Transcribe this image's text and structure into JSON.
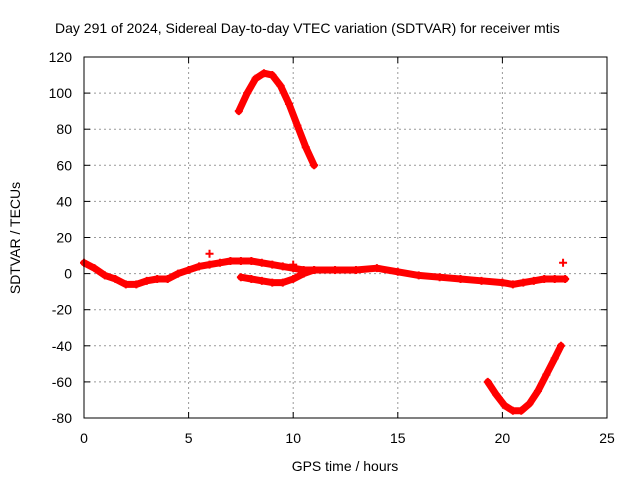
{
  "chart_data": {
    "type": "scatter",
    "title": "Day 291 of 2024, Sidereal Day-to-day VTEC variation (SDTVAR) for receiver mtis",
    "xlabel": "GPS time / hours",
    "ylabel": "SDTVAR / TECUs",
    "xlim": [
      0,
      25
    ],
    "ylim": [
      -80,
      120
    ],
    "xticks": [
      0,
      5,
      10,
      15,
      20,
      25
    ],
    "yticks": [
      -80,
      -60,
      -40,
      -20,
      0,
      20,
      40,
      60,
      80,
      100,
      120
    ],
    "grid": true,
    "series_color": "#ff0000",
    "series": [
      {
        "name": "main-band",
        "x": [
          0,
          0.5,
          1,
          1.5,
          2,
          2.5,
          3,
          3.5,
          4,
          4.5,
          5,
          5.5,
          6,
          6.5,
          7,
          7.5,
          8,
          8.5,
          9,
          9.5,
          10,
          10.5,
          11,
          12,
          13,
          14,
          15,
          16,
          17,
          18,
          19,
          20,
          20.5,
          21,
          21.5,
          22,
          22.5,
          23
        ],
        "y": [
          6,
          3,
          -1,
          -3,
          -6,
          -6,
          -4,
          -3,
          -3,
          0,
          2,
          4,
          5,
          6,
          7,
          7,
          7,
          6,
          5,
          4,
          3,
          2,
          2,
          2,
          2,
          3,
          1,
          -1,
          -2,
          -3,
          -4,
          -5,
          -6,
          -5,
          -4,
          -3,
          -3,
          -3
        ]
      },
      {
        "name": "lower-branch",
        "x": [
          7.5,
          8,
          8.5,
          9,
          9.5,
          10,
          10.5,
          11
        ],
        "y": [
          -2,
          -3,
          -4,
          -5,
          -5,
          -3,
          0,
          2
        ]
      },
      {
        "name": "upper-arc",
        "x": [
          7.4,
          7.8,
          8.2,
          8.6,
          9.0,
          9.4,
          9.8,
          10.2,
          10.6,
          11.0
        ],
        "y": [
          90,
          100,
          108,
          111,
          110,
          104,
          94,
          82,
          70,
          60
        ]
      },
      {
        "name": "lower-arc",
        "x": [
          19.3,
          19.7,
          20.1,
          20.5,
          20.9,
          21.3,
          21.7,
          22.1,
          22.5,
          22.8
        ],
        "y": [
          -60,
          -67,
          -73,
          -76,
          -76,
          -72,
          -65,
          -56,
          -47,
          -40
        ]
      },
      {
        "name": "outlier-points",
        "x": [
          6.0,
          10.0,
          22.9
        ],
        "y": [
          11,
          5,
          6
        ]
      }
    ]
  }
}
